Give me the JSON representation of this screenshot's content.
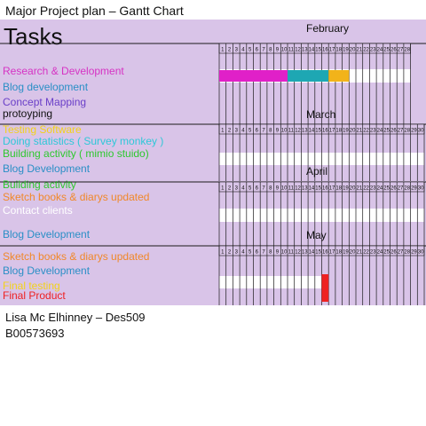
{
  "page_title": "Major Project plan – Gantt Chart",
  "footer": {
    "author": "Lisa Mc Elhinney – Des509",
    "student_id": "B00573693"
  },
  "colors": {
    "background": "#d9c4e8",
    "track": "#ffffff",
    "grid": "#1a1a1a",
    "magenta": "#e020c8",
    "teal": "#1ea7b3",
    "amber": "#f2b31a",
    "red": "#ee2222"
  },
  "chart_data": {
    "type": "gantt",
    "title": "Tasks",
    "sections": [
      {
        "month": "February",
        "days": [
          "1",
          "2",
          "3",
          "4",
          "5",
          "6",
          "7",
          "8",
          "9",
          "10",
          "11",
          "12",
          "13",
          "14",
          "15",
          "16",
          "17",
          "18",
          "19",
          "20",
          "21",
          "22",
          "23",
          "24",
          "25",
          "26",
          "27",
          "28"
        ],
        "tasks": [
          {
            "label": "Research & Development",
            "color": "#d633c4"
          },
          {
            "label": "Blog development",
            "color": "#2a8fc6"
          },
          {
            "label": "Concept Mapping",
            "color": "#6a3fc8"
          },
          {
            "label": "protoyping",
            "color": "#111111"
          }
        ],
        "bars": [
          {
            "start": 1,
            "end": 10,
            "color": "#e020c8"
          },
          {
            "start": 11,
            "end": 16,
            "color": "#1ea7b3"
          },
          {
            "start": 17,
            "end": 19,
            "color": "#f2b31a"
          }
        ],
        "track_end": 28
      },
      {
        "month": "March",
        "days": [
          "1",
          "2",
          "3",
          "4",
          "5",
          "6",
          "7",
          "8",
          "9",
          "10",
          "11",
          "12",
          "13",
          "14",
          "15",
          "16",
          "17",
          "18",
          "19",
          "20",
          "21",
          "22",
          "23",
          "24",
          "25",
          "26",
          "27",
          "28",
          "29",
          "30"
        ],
        "tasks": [
          {
            "label": "Testing Software",
            "color": "#f2d21a"
          },
          {
            "label": "Doing statistics ( Survey monkey )",
            "color": "#2ec8d8"
          },
          {
            "label": "Building activity ( mimio stuido)",
            "color": "#2ec82e"
          }
        ],
        "bars": [],
        "track_end": 30
      },
      {
        "month": "April",
        "days": [
          "1",
          "2",
          "3",
          "4",
          "5",
          "6",
          "7",
          "8",
          "9",
          "10",
          "11",
          "12",
          "13",
          "14",
          "15",
          "16",
          "17",
          "18",
          "19",
          "20",
          "21",
          "22",
          "23",
          "24",
          "25",
          "26",
          "27",
          "28",
          "29",
          "30"
        ],
        "tasks": [
          {
            "label": "Blog Development",
            "color": "#2a8fc6"
          },
          {
            "label": "Building activity",
            "color": "#2ec82e"
          },
          {
            "label": "Sketch books & diarys updated",
            "color": "#f0882a"
          },
          {
            "label": "Contact clients",
            "color": "#ffffff"
          },
          {
            "label": "Blog Development",
            "color": "#2a8fc6"
          }
        ],
        "bars": [],
        "track_end": 30
      },
      {
        "month": "May",
        "days": [
          "1",
          "2",
          "3",
          "4",
          "5",
          "6",
          "7",
          "8",
          "9",
          "10",
          "11",
          "12",
          "13",
          "14",
          "15",
          "16",
          "17",
          "18",
          "19",
          "20",
          "21",
          "22",
          "23",
          "24",
          "25",
          "26",
          "27",
          "28",
          "29",
          "30"
        ],
        "tasks": [
          {
            "label": "Sketch books & diarys updated",
            "color": "#f0882a"
          },
          {
            "label": "Blog Development",
            "color": "#2a8fc6"
          },
          {
            "label": "Final testing",
            "color": "#f2d21a"
          },
          {
            "label": "Final Product",
            "color": "#ee2222"
          }
        ],
        "bars": [
          {
            "start": 16,
            "end": 16,
            "color": "#ee2222"
          }
        ],
        "track_end": 15
      }
    ]
  }
}
